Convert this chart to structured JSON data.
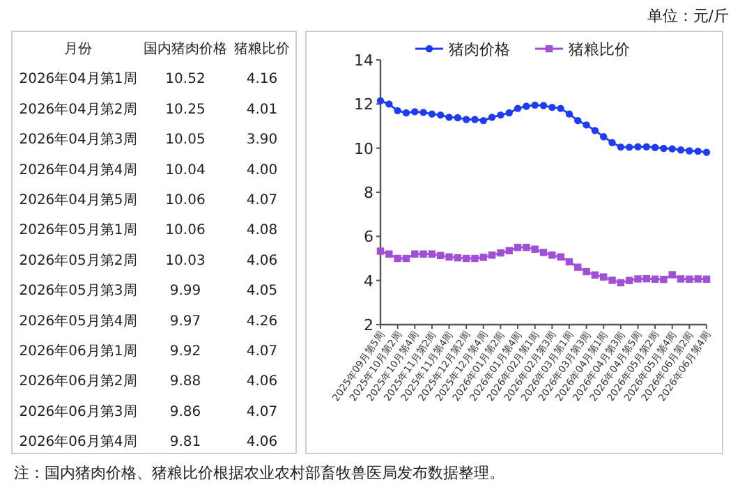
{
  "chart_data": [
    {
      "type": "other",
      "xlabel": "月份",
      "categories": [
        "2026年04月第1周",
        "2026年04月第2周",
        "2026年04月第3周",
        "2026年04月第4周",
        "2026年04月第5周",
        "2026年05月第1周",
        "2026年05月第2周",
        "2026年05月第3周",
        "2026年05月第4周",
        "2026年06月第1周",
        "2026年06月第2周",
        "2026年06月第3周",
        "2026年06月第4周"
      ],
      "series": [
        {
          "name": "国内猪肉价格",
          "values": [
            10.52,
            10.25,
            10.05,
            10.04,
            10.06,
            10.06,
            10.03,
            9.99,
            9.97,
            9.92,
            9.88,
            9.86,
            9.81
          ],
          "value_labels": [
            "10.52",
            "10.25",
            "10.05",
            "10.04",
            "10.06",
            "10.06",
            "10.03",
            "9.99",
            "9.97",
            "9.92",
            "9.88",
            "9.86",
            "9.81"
          ]
        },
        {
          "name": "猪粮比价",
          "values": [
            4.16,
            4.01,
            3.9,
            4.0,
            4.07,
            4.08,
            4.06,
            4.05,
            4.26,
            4.07,
            4.06,
            4.07,
            4.06
          ],
          "value_labels": [
            "4.16",
            "4.01",
            "3.90",
            "4.00",
            "4.07",
            "4.08",
            "4.06",
            "4.05",
            "4.26",
            "4.07",
            "4.06",
            "4.07",
            "4.06"
          ]
        }
      ],
      "annotations": [
        "单位：元/斤",
        "注：国内猪肉价格、猪粮比价根据农业农村部畜牧兽医局发布数据整理。"
      ]
    },
    {
      "type": "line",
      "categories": [
        "2025年09月第5周",
        null,
        "2025年10月第2周",
        null,
        "2025年10月第4周",
        null,
        "2025年11月第2周",
        null,
        "2025年11月第4周",
        null,
        "2025年12月第2周",
        null,
        "2025年12月第4周",
        null,
        "2026年01月第2周",
        null,
        "2026年01月第4周",
        null,
        "2026年02月第1周",
        null,
        "2026年02月第3周",
        null,
        "2026年03月第1周",
        null,
        "2026年03月第3周",
        null,
        "2026年04月第1周",
        null,
        "2026年04月第3周",
        null,
        "2026年04月第5周",
        null,
        "2026年05月第2周",
        null,
        "2026年05月第4周",
        null,
        "2026年06月第2周",
        null,
        "2026年06月第4周"
      ],
      "series": [
        {
          "name": "猪肉价格",
          "color": "#1f3cf5",
          "marker": "circle",
          "values": [
            12.15,
            12.0,
            11.7,
            11.6,
            11.65,
            11.62,
            11.55,
            11.5,
            11.4,
            11.38,
            11.3,
            11.3,
            11.25,
            11.4,
            11.5,
            11.6,
            11.8,
            11.9,
            11.95,
            11.93,
            11.85,
            11.8,
            11.55,
            11.25,
            11.05,
            10.8,
            10.52,
            10.25,
            10.05,
            10.04,
            10.06,
            10.06,
            10.03,
            9.99,
            9.97,
            9.92,
            9.88,
            9.86,
            9.81
          ]
        },
        {
          "name": "猪粮比价",
          "color": "#a04fd6",
          "marker": "square",
          "values": [
            5.33,
            5.2,
            5.0,
            5.0,
            5.2,
            5.2,
            5.2,
            5.13,
            5.07,
            5.03,
            5.0,
            5.0,
            5.05,
            5.15,
            5.25,
            5.35,
            5.5,
            5.5,
            5.42,
            5.27,
            5.15,
            5.07,
            4.85,
            4.6,
            4.4,
            4.25,
            4.16,
            4.01,
            3.9,
            4.0,
            4.07,
            4.08,
            4.06,
            4.05,
            4.26,
            4.07,
            4.06,
            4.07,
            4.06
          ]
        }
      ],
      "ylim": [
        2,
        14
      ],
      "yticks": [
        2,
        4,
        6,
        8,
        10,
        12,
        14
      ],
      "legend": "top",
      "line_style": "solid"
    }
  ]
}
